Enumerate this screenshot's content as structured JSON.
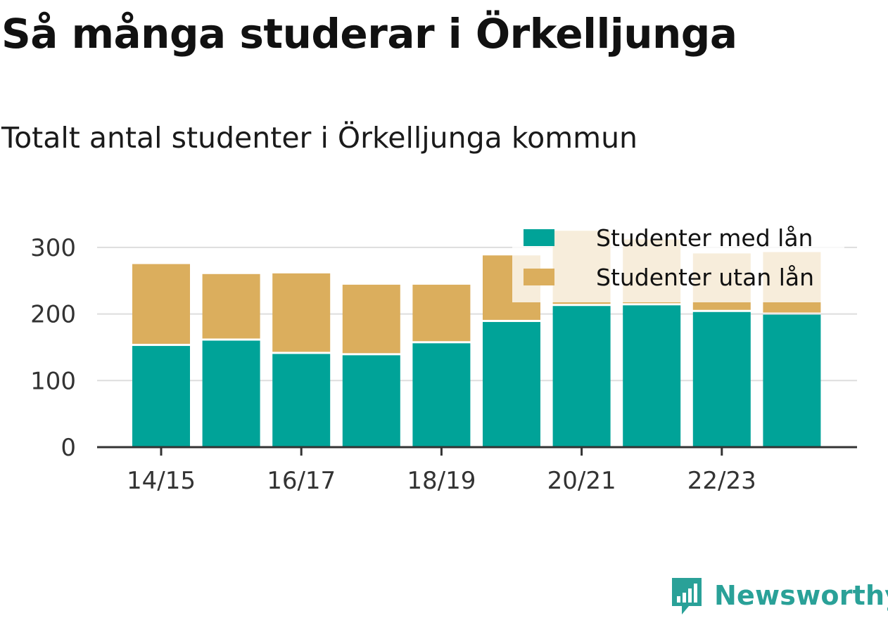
{
  "header": {
    "title": "Så många studerar i Örkelljunga",
    "subtitle": "Totalt antal studenter i Örkelljunga kommun"
  },
  "branding": {
    "logo_text": "Newsworthy",
    "logo_icon": "bar-chart-speech-bubble-icon",
    "logo_color": "#2aa198"
  },
  "chart_data": {
    "type": "bar",
    "stacked": true,
    "categories": [
      "14/15",
      "15/16",
      "16/17",
      "17/18",
      "18/19",
      "19/20",
      "20/21",
      "21/22",
      "22/23",
      "23/24"
    ],
    "x_tick_labels": [
      "14/15",
      "16/17",
      "18/19",
      "20/21",
      "22/23"
    ],
    "series": [
      {
        "name": "Studenter med lån",
        "color": "#00a398",
        "values": [
          152,
          160,
          140,
          138,
          156,
          188,
          212,
          213,
          203,
          199
        ]
      },
      {
        "name": "Studenter utan lån",
        "color": "#dbae5d",
        "values": [
          123,
          100,
          121,
          106,
          88,
          100,
          113,
          99,
          88,
          94
        ]
      }
    ],
    "ylim": [
      0,
      330
    ],
    "y_ticks": [
      0,
      100,
      200,
      300
    ],
    "grid": true,
    "legend_position": "top-right",
    "xlabel": "",
    "ylabel": ""
  }
}
